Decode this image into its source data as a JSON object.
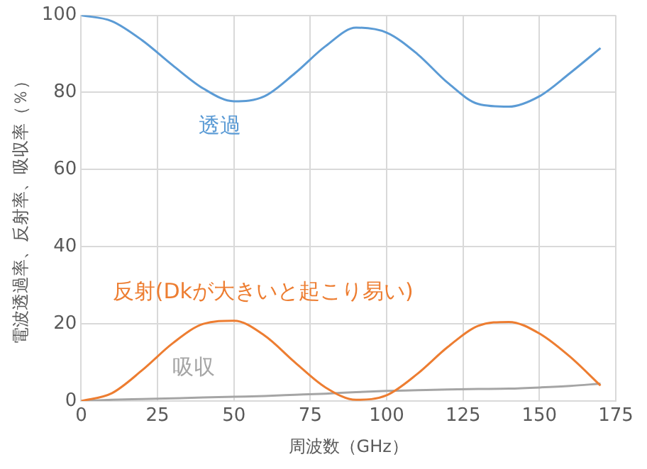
{
  "chart_data": {
    "type": "line",
    "xlabel": "周波数（GHz）",
    "ylabel": "電波透過率、反射率、吸収率（％）",
    "x": [
      0,
      10,
      20,
      30,
      40,
      50,
      60,
      70,
      80,
      90,
      100,
      110,
      120,
      130,
      140,
      150,
      160,
      170
    ],
    "xlim": [
      0,
      175
    ],
    "xticks": [
      0,
      25,
      50,
      75,
      100,
      125,
      150,
      175
    ],
    "ylim": [
      0,
      100
    ],
    "yticks": [
      0,
      20,
      40,
      60,
      80,
      100
    ],
    "grid": true,
    "legend": false,
    "marker": "none",
    "line_style": "solid",
    "series": [
      {
        "name": "透過",
        "color": "#5b9bd5",
        "values": [
          100,
          98.5,
          93.5,
          87,
          81,
          77.7,
          79,
          85,
          92,
          96.8,
          95.5,
          90,
          82.5,
          77,
          76.3,
          79,
          85,
          91.5
        ]
      },
      {
        "name": "反射(Dkが大きいと起こり易い)",
        "color": "#ed7d31",
        "values": [
          0,
          2,
          8,
          15,
          20,
          20.8,
          17,
          10,
          3.5,
          0.3,
          1.5,
          7,
          14,
          19.5,
          20.5,
          17.5,
          11.5,
          4
        ]
      },
      {
        "name": "吸収",
        "color": "#a5a5a5",
        "values": [
          0,
          0.3,
          0.5,
          0.7,
          0.9,
          1.1,
          1.3,
          1.6,
          1.9,
          2.3,
          2.6,
          2.8,
          3,
          3.1,
          3.2,
          3.5,
          3.9,
          4.5
        ]
      }
    ]
  }
}
